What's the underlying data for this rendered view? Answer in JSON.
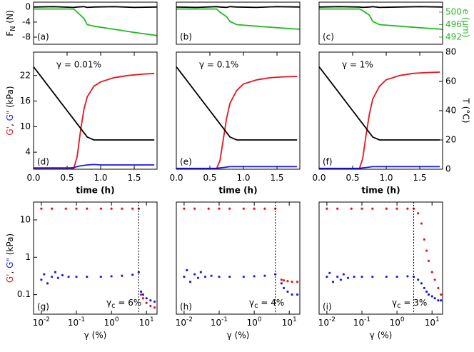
{
  "chart_data": [
    {
      "type": "line",
      "panel_label": "(a)",
      "ylabel": [
        "F",
        "N",
        " (N)"
      ],
      "ylabel_sub": [
        1
      ],
      "xlim": [
        0,
        1.84
      ],
      "ylim": [
        -9.9,
        1.3
      ],
      "yticks": [
        0,
        -4,
        -8
      ],
      "y2lim": [
        489.7,
        503.2
      ],
      "x": [
        0,
        0.3,
        0.6,
        0.65,
        0.75,
        0.8,
        0.9,
        1.2,
        1.5,
        1.84
      ],
      "series": [
        {
          "color": "#000000",
          "values": [
            0,
            0.1,
            -0.1,
            0,
            0.1,
            -0.1,
            0,
            0.1,
            -0.1,
            0
          ]
        },
        {
          "color": "#22bb22",
          "axis": "y2",
          "values": [
            501,
            501,
            501,
            500,
            498,
            496,
            495.5,
            494.5,
            493.5,
            492.5
          ]
        }
      ]
    },
    {
      "type": "line",
      "panel_label": "(b)",
      "xlim": [
        0,
        1.84
      ],
      "ylim": [
        -9.9,
        1.3
      ],
      "y2lim": [
        489.7,
        503.2
      ],
      "x": [
        0,
        0.3,
        0.6,
        0.65,
        0.75,
        0.8,
        0.9,
        1.2,
        1.5,
        1.84
      ],
      "series": [
        {
          "color": "#000000",
          "values": [
            0,
            -0.1,
            0.1,
            0,
            -0.1,
            0.1,
            0,
            -0.1,
            0.1,
            0
          ]
        },
        {
          "color": "#22bb22",
          "axis": "y2",
          "values": [
            501,
            501,
            501,
            500,
            498.5,
            497,
            496,
            495.5,
            495,
            494.5
          ]
        }
      ]
    },
    {
      "type": "line",
      "panel_label": "(c)",
      "y2label": "e (μm)",
      "y2label_color": "#22bb22",
      "xlim": [
        0,
        1.84
      ],
      "ylim": [
        -9.9,
        1.3
      ],
      "y2lim": [
        489.7,
        503.2
      ],
      "y2ticks": [
        500,
        496,
        492
      ],
      "x": [
        0,
        0.3,
        0.6,
        0.65,
        0.75,
        0.8,
        0.9,
        1.2,
        1.5,
        1.84
      ],
      "series": [
        {
          "color": "#000000",
          "values": [
            0,
            0.1,
            0,
            -0.1,
            0,
            0.1,
            -0.1,
            0,
            0.1,
            0
          ]
        },
        {
          "color": "#22bb22",
          "axis": "y2",
          "values": [
            501,
            501,
            501,
            500.5,
            499,
            497,
            496,
            495.5,
            495,
            494.5
          ]
        }
      ]
    },
    {
      "type": "line",
      "panel_label": "(d)",
      "annotation": "γ = 0.01%",
      "xlabel": "time (h)",
      "ylabel": [
        "G'",
        ", ",
        "G\"",
        " (kPa)"
      ],
      "ylabel_colors": [
        "#e8141c",
        "#000000",
        "#1a1ae6",
        "#000000"
      ],
      "xlim": [
        0,
        1.84
      ],
      "xticks": [
        {
          "value": 0,
          "label": "0.0"
        },
        {
          "value": 0.5,
          "label": "0.5"
        },
        {
          "value": 1,
          "label": "1.0"
        },
        {
          "value": 1.5,
          "label": "1.5"
        }
      ],
      "ylim": [
        0,
        27.5
      ],
      "yticks": [
        4,
        10,
        16,
        22
      ],
      "y2lim": [
        0,
        80
      ],
      "x": [
        0,
        0.2,
        0.4,
        0.5,
        0.55,
        0.6,
        0.65,
        0.7,
        0.75,
        0.8,
        0.9,
        1.0,
        1.2,
        1.4,
        1.6,
        1.8
      ],
      "series": [
        {
          "color": "#e8141c",
          "values": [
            0,
            0,
            0,
            0,
            0,
            0.2,
            3,
            9,
            14,
            17,
            19.5,
            20.5,
            21.5,
            22,
            22.3,
            22.5
          ]
        },
        {
          "color": "#1a1ae6",
          "values": [
            0.3,
            0.3,
            0.3,
            0.3,
            0.3,
            0.4,
            0.6,
            0.8,
            0.9,
            1,
            1.1,
            1,
            1,
            1,
            1,
            1
          ]
        },
        {
          "color": "#000000",
          "axis": "y2",
          "values": [
            70,
            58,
            46,
            40,
            37,
            34,
            31,
            28,
            25,
            22,
            20,
            20,
            20,
            20,
            20,
            20
          ]
        }
      ]
    },
    {
      "type": "line",
      "panel_label": "(e)",
      "annotation": "γ = 0.1%",
      "xlabel": "time (h)",
      "xlim": [
        0,
        1.84
      ],
      "xticks": [
        {
          "value": 0,
          "label": "0.0"
        },
        {
          "value": 0.5,
          "label": "0.5"
        },
        {
          "value": 1,
          "label": "1.0"
        },
        {
          "value": 1.5,
          "label": "1.5"
        }
      ],
      "ylim": [
        0,
        27.5
      ],
      "y2lim": [
        0,
        80
      ],
      "x": [
        0,
        0.2,
        0.4,
        0.5,
        0.55,
        0.6,
        0.65,
        0.7,
        0.75,
        0.8,
        0.9,
        1.0,
        1.2,
        1.4,
        1.6,
        1.8
      ],
      "series": [
        {
          "color": "#e8141c",
          "values": [
            0,
            0,
            0,
            0,
            0,
            0.1,
            2,
            7,
            12,
            15.5,
            18.5,
            20,
            21,
            21.5,
            21.7,
            21.8
          ]
        },
        {
          "color": "#1a1ae6",
          "values": [
            0.2,
            0.2,
            0.2,
            0.2,
            0.2,
            0.2,
            0.3,
            0.4,
            0.5,
            0.6,
            0.6,
            0.6,
            0.6,
            0.6,
            0.6,
            0.6
          ]
        },
        {
          "color": "#000000",
          "axis": "y2",
          "values": [
            70,
            58,
            46,
            40,
            37,
            34,
            31,
            28,
            25,
            22,
            20,
            20,
            20,
            20,
            20,
            20
          ]
        }
      ]
    },
    {
      "type": "line",
      "panel_label": "(f)",
      "annotation": "γ = 1%",
      "xlabel": "time (h)",
      "y2label": "T (°C)",
      "xlim": [
        0,
        1.84
      ],
      "xticks": [
        {
          "value": 0,
          "label": "0.0"
        },
        {
          "value": 0.5,
          "label": "0.5"
        },
        {
          "value": 1,
          "label": "1.0"
        },
        {
          "value": 1.5,
          "label": "1.5"
        }
      ],
      "ylim": [
        0,
        27.5
      ],
      "y2lim": [
        0,
        80
      ],
      "y2ticks": [
        0,
        20,
        40,
        60,
        80
      ],
      "x": [
        0,
        0.2,
        0.4,
        0.5,
        0.55,
        0.6,
        0.65,
        0.7,
        0.75,
        0.8,
        0.9,
        1.0,
        1.2,
        1.4,
        1.6,
        1.8
      ],
      "series": [
        {
          "color": "#e8141c",
          "values": [
            0,
            0,
            0,
            0,
            0,
            0.1,
            2.5,
            8,
            13,
            16.5,
            19.5,
            21,
            22,
            22.5,
            22.7,
            22.8
          ]
        },
        {
          "color": "#1a1ae6",
          "values": [
            0.2,
            0.2,
            0.2,
            0.2,
            0.2,
            0.2,
            0.3,
            0.4,
            0.5,
            0.6,
            0.6,
            0.6,
            0.6,
            0.6,
            0.6,
            0.6
          ]
        },
        {
          "color": "#000000",
          "axis": "y2",
          "values": [
            70,
            58,
            46,
            40,
            37,
            34,
            31,
            28,
            25,
            22,
            20,
            20,
            20,
            20,
            20,
            20
          ]
        }
      ]
    },
    {
      "type": "scatter",
      "xlog": true,
      "ylog": true,
      "panel_label": "(g)",
      "gamma_c": 6,
      "gamma_c_label": [
        "γ",
        "c",
        " = 6%"
      ],
      "xlabel": "γ (%)",
      "ylabel": [
        "G'",
        ", ",
        "G\"",
        " (kPa)"
      ],
      "ylabel_colors": [
        "#e8141c",
        "#000000",
        "#1a1ae6",
        "#000000"
      ],
      "xlim": [
        0.006,
        20
      ],
      "xticks": [
        {
          "value": 0.01,
          "label": "10",
          "exponent": "-2"
        },
        {
          "value": 0.1,
          "label": "10",
          "exponent": "-1"
        },
        {
          "value": 1,
          "label": "10",
          "exponent": "0"
        },
        {
          "value": 10,
          "label": "10",
          "exponent": "1"
        }
      ],
      "ylim": [
        0.03,
        30
      ],
      "yticks": [
        0.1,
        1,
        10
      ],
      "series": [
        {
          "color": "#e8141c",
          "x": [
            0.01,
            0.02,
            0.05,
            0.1,
            0.2,
            0.5,
            1,
            2,
            4,
            6,
            7,
            8,
            10,
            13,
            17
          ],
          "values": [
            20,
            20,
            20,
            20,
            20,
            20,
            20,
            20,
            20,
            20,
            0.1,
            0.08,
            0.06,
            0.05,
            0.045
          ]
        },
        {
          "color": "#1a1ae6",
          "x": [
            0.01,
            0.012,
            0.015,
            0.02,
            0.025,
            0.03,
            0.04,
            0.06,
            0.1,
            0.2,
            0.5,
            1,
            2,
            4,
            6,
            7,
            8,
            10,
            13,
            17
          ],
          "values": [
            0.25,
            0.35,
            0.2,
            0.3,
            0.4,
            0.28,
            0.33,
            0.3,
            0.3,
            0.3,
            0.3,
            0.31,
            0.32,
            0.34,
            0.4,
            0.12,
            0.1,
            0.08,
            0.07,
            0.065
          ]
        }
      ]
    },
    {
      "type": "scatter",
      "xlog": true,
      "ylog": true,
      "panel_label": "(h)",
      "gamma_c": 4,
      "gamma_c_label": [
        "γ",
        "c",
        " = 4%"
      ],
      "xlabel": "γ (%)",
      "xlim": [
        0.006,
        20
      ],
      "xticks": [
        {
          "value": 0.01,
          "label": "10",
          "exponent": "-2"
        },
        {
          "value": 0.1,
          "label": "10",
          "exponent": "-1"
        },
        {
          "value": 1,
          "label": "10",
          "exponent": "0"
        },
        {
          "value": 10,
          "label": "10",
          "exponent": "1"
        }
      ],
      "ylim": [
        0.03,
        30
      ],
      "series": [
        {
          "color": "#e8141c",
          "x": [
            0.01,
            0.02,
            0.05,
            0.1,
            0.2,
            0.5,
            1,
            2,
            4,
            6,
            7,
            9,
            12,
            17
          ],
          "values": [
            20,
            20,
            20,
            20,
            20,
            20,
            20,
            20,
            20,
            0.25,
            0.24,
            0.23,
            0.22,
            0.22
          ]
        },
        {
          "color": "#1a1ae6",
          "x": [
            0.01,
            0.012,
            0.015,
            0.02,
            0.025,
            0.03,
            0.04,
            0.06,
            0.1,
            0.2,
            0.5,
            1,
            2,
            4,
            6,
            7,
            9,
            12,
            17
          ],
          "values": [
            0.3,
            0.45,
            0.22,
            0.35,
            0.28,
            0.4,
            0.3,
            0.32,
            0.3,
            0.3,
            0.3,
            0.31,
            0.32,
            0.35,
            0.2,
            0.15,
            0.12,
            0.1,
            0.1
          ]
        }
      ]
    },
    {
      "type": "scatter",
      "xlog": true,
      "ylog": true,
      "panel_label": "(i)",
      "gamma_c": 3,
      "gamma_c_label": [
        "γ",
        "c",
        " = 3%"
      ],
      "xlabel": "γ (%)",
      "xlim": [
        0.006,
        20
      ],
      "xticks": [
        {
          "value": 0.01,
          "label": "10",
          "exponent": "-2"
        },
        {
          "value": 0.1,
          "label": "10",
          "exponent": "-1"
        },
        {
          "value": 1,
          "label": "10",
          "exponent": "0"
        },
        {
          "value": 10,
          "label": "10",
          "exponent": "1"
        }
      ],
      "ylim": [
        0.03,
        30
      ],
      "series": [
        {
          "color": "#e8141c",
          "x": [
            0.01,
            0.02,
            0.05,
            0.1,
            0.2,
            0.5,
            1,
            2,
            3,
            4,
            5,
            6,
            7,
            8,
            10,
            12,
            15,
            18
          ],
          "values": [
            20,
            20,
            20,
            20,
            20,
            20,
            20,
            20,
            20,
            15,
            8,
            3,
            1.5,
            0.8,
            0.4,
            0.25,
            0.15,
            0.1
          ]
        },
        {
          "color": "#1a1ae6",
          "x": [
            0.01,
            0.012,
            0.015,
            0.02,
            0.025,
            0.03,
            0.04,
            0.06,
            0.1,
            0.2,
            0.5,
            1,
            2,
            3,
            4,
            5,
            6,
            7,
            8,
            10,
            12,
            15,
            18
          ],
          "values": [
            0.3,
            0.38,
            0.22,
            0.3,
            0.25,
            0.35,
            0.28,
            0.3,
            0.3,
            0.3,
            0.3,
            0.3,
            0.31,
            0.3,
            0.25,
            0.2,
            0.15,
            0.12,
            0.1,
            0.09,
            0.08,
            0.07,
            0.07
          ]
        }
      ]
    }
  ]
}
